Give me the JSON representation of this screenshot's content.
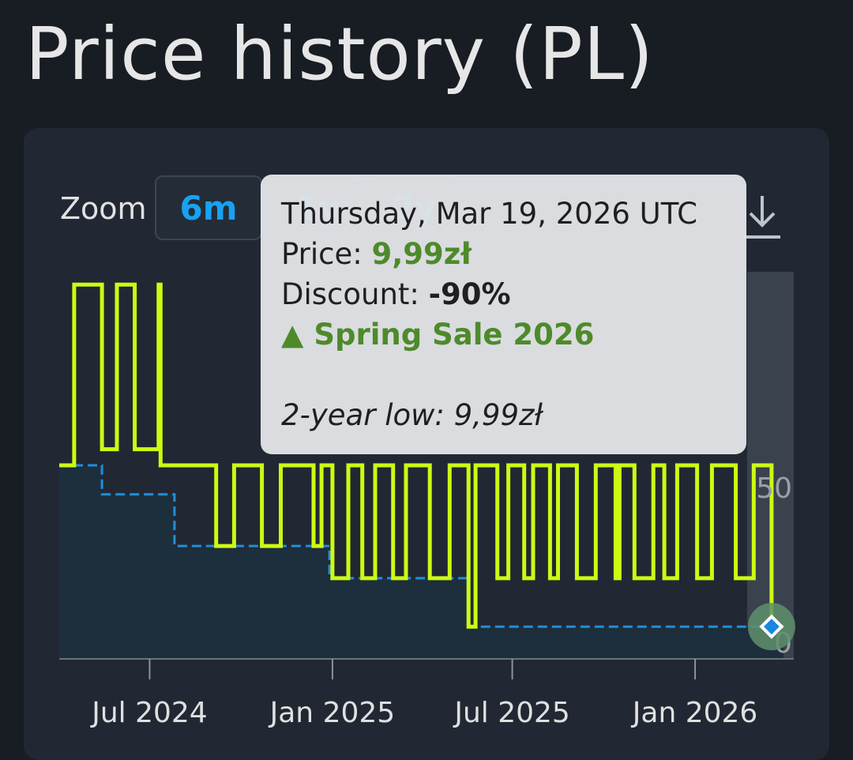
{
  "page": {
    "title": "Price history (PL)"
  },
  "zoom": {
    "label": "Zoom",
    "options": [
      "6m",
      "1y",
      "2y"
    ],
    "selected": "6m"
  },
  "download_icon": "download-icon",
  "colors": {
    "price_line": "#cdfa14",
    "low_line": "#1f8fd8",
    "area": "#1d2e3d",
    "tooltip_green": "#4e8a2a",
    "accent": "#17a2f2"
  },
  "tooltip": {
    "date": "Thursday, Mar 19, 2026 UTC",
    "price_label": "Price:",
    "price_value": "9,99zł",
    "discount_label": "Discount:",
    "discount_value": "-90%",
    "event_icon": "triangle-up-icon",
    "event": "Spring Sale 2026",
    "low_label": "2-year low:",
    "low_value": "9,99zł"
  },
  "chart_data": {
    "type": "line",
    "step": true,
    "x_ticks": [
      "Jul 2024",
      "Jan 2025",
      "Jul 2025",
      "Jan 2026"
    ],
    "y_ticks": [
      "50",
      "0"
    ],
    "ylim": [
      0,
      120
    ],
    "price_series": [
      [
        "2024-04-01",
        60
      ],
      [
        "2024-04-16",
        116
      ],
      [
        "2024-05-14",
        65
      ],
      [
        "2024-05-29",
        116
      ],
      [
        "2024-06-16",
        65
      ],
      [
        "2024-07-10",
        116
      ],
      [
        "2024-07-12",
        60
      ],
      [
        "2024-09-06",
        35
      ],
      [
        "2024-09-24",
        60
      ],
      [
        "2024-10-22",
        35
      ],
      [
        "2024-11-10",
        60
      ],
      [
        "2024-12-13",
        35
      ],
      [
        "2024-12-21",
        60
      ],
      [
        "2025-01-01",
        25
      ],
      [
        "2025-01-17",
        60
      ],
      [
        "2025-01-31",
        25
      ],
      [
        "2025-02-13",
        60
      ],
      [
        "2025-03-03",
        25
      ],
      [
        "2025-03-16",
        60
      ],
      [
        "2025-04-09",
        25
      ],
      [
        "2025-04-29",
        60
      ],
      [
        "2025-05-18",
        10
      ],
      [
        "2025-05-25",
        60
      ],
      [
        "2025-06-16",
        25
      ],
      [
        "2025-06-27",
        60
      ],
      [
        "2025-07-13",
        25
      ],
      [
        "2025-07-22",
        60
      ],
      [
        "2025-08-08",
        25
      ],
      [
        "2025-08-16",
        60
      ],
      [
        "2025-09-04",
        25
      ],
      [
        "2025-09-23",
        60
      ],
      [
        "2025-10-13",
        25
      ],
      [
        "2025-10-17",
        60
      ],
      [
        "2025-11-01",
        25
      ],
      [
        "2025-11-20",
        60
      ],
      [
        "2025-12-01",
        25
      ],
      [
        "2025-12-14",
        60
      ],
      [
        "2026-01-03",
        25
      ],
      [
        "2026-01-18",
        60
      ],
      [
        "2026-02-11",
        25
      ],
      [
        "2026-03-01",
        60
      ],
      [
        "2026-03-19",
        10
      ],
      [
        "2026-03-31",
        10
      ]
    ],
    "low_series": [
      [
        "2024-04-01",
        60
      ],
      [
        "2024-05-14",
        51
      ],
      [
        "2024-07-26",
        35
      ],
      [
        "2024-12-29",
        25
      ],
      [
        "2025-05-18",
        10
      ],
      [
        "2026-03-31",
        10
      ]
    ],
    "highlight_point": [
      "2026-03-19",
      10
    ]
  }
}
